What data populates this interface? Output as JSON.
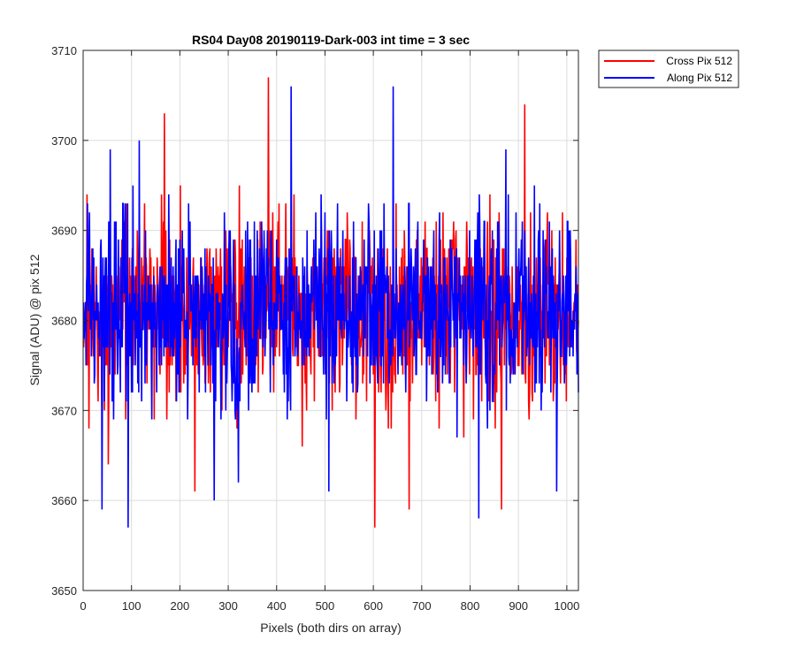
{
  "chart_data": {
    "type": "line",
    "title": "RS04 Day08 20190119-Dark-003 int time = 3 sec",
    "xlabel": "Pixels (both dirs on array)",
    "ylabel": "Signal (ADU) @ pix 512",
    "xlim": [
      0,
      1024
    ],
    "ylim": [
      3650,
      3710
    ],
    "xticks": [
      0,
      100,
      200,
      300,
      400,
      500,
      600,
      700,
      800,
      900,
      1000
    ],
    "yticks": [
      3650,
      3660,
      3670,
      3680,
      3690,
      3700,
      3710
    ],
    "grid": true,
    "legend_position": "outside-top-right",
    "noise": {
      "n_points": 1024,
      "mean": 3681,
      "std": 5.2
    },
    "series": [
      {
        "name": "Cross Pix 512",
        "color": "#ff0000",
        "seed": 17,
        "extremes": [
          [
            7,
            3694
          ],
          [
            11,
            3668
          ],
          [
            51,
            3664
          ],
          [
            167,
            3703
          ],
          [
            172,
            3669
          ],
          [
            230,
            3661
          ],
          [
            382,
            3707
          ],
          [
            452,
            3666
          ],
          [
            602,
            3657
          ],
          [
            673,
            3659
          ],
          [
            864,
            3659
          ],
          [
            912,
            3704
          ]
        ]
      },
      {
        "name": "Along Pix 512",
        "color": "#0000ff",
        "seed": 91,
        "extremes": [
          [
            38,
            3659
          ],
          [
            55,
            3699
          ],
          [
            92,
            3657
          ],
          [
            115,
            3700
          ],
          [
            270,
            3660
          ],
          [
            320,
            3662
          ],
          [
            429,
            3706
          ],
          [
            507,
            3661
          ],
          [
            640,
            3706
          ],
          [
            817,
            3658
          ],
          [
            873,
            3699
          ],
          [
            978,
            3661
          ]
        ]
      }
    ]
  }
}
